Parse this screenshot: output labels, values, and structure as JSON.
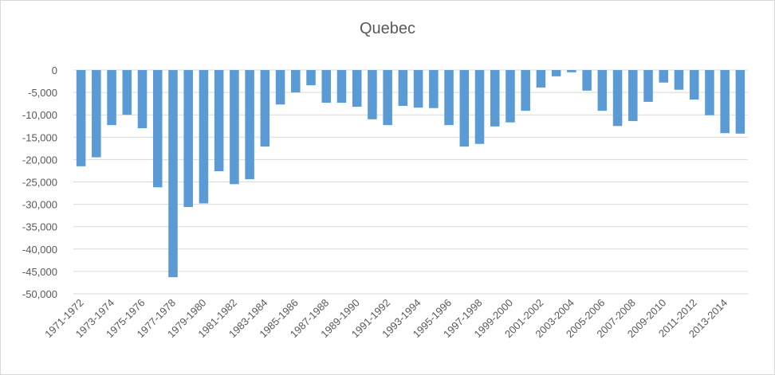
{
  "chart_data": {
    "type": "bar",
    "title": "Quebec",
    "categories": [
      "1971-1972",
      null,
      "1973-1974",
      null,
      "1975-1976",
      null,
      "1977-1978",
      null,
      "1979-1980",
      null,
      "1981-1982",
      null,
      "1983-1984",
      null,
      "1985-1986",
      null,
      "1987-1988",
      null,
      "1989-1990",
      null,
      "1991-1992",
      null,
      "1993-1994",
      null,
      "1995-1996",
      null,
      "1997-1998",
      null,
      "1999-2000",
      null,
      "2001-2002",
      null,
      "2003-2004",
      null,
      "2005-2006",
      null,
      "2007-2008",
      null,
      "2009-2010",
      null,
      "2011-2012",
      null,
      "2013-2014",
      null
    ],
    "values": [
      -21500,
      -19500,
      -12300,
      -10000,
      -13000,
      -26200,
      -46300,
      -30600,
      -29800,
      -22600,
      -25500,
      -24400,
      -17100,
      -7700,
      -5000,
      -3400,
      -7300,
      -7300,
      -8200,
      -11000,
      -12300,
      -8000,
      -8400,
      -8500,
      -12300,
      -17100,
      -16500,
      -12600,
      -11700,
      -9100,
      -3900,
      -1400,
      -500,
      -4600,
      -9100,
      -12500,
      -11400,
      -7100,
      -2800,
      -4400,
      -6600,
      -10100,
      -14100,
      -14200
    ],
    "color": "#5b9bd5",
    "ylim": [
      -50000,
      0
    ],
    "yticks": [
      {
        "value": -50000,
        "label": "-50,000"
      },
      {
        "value": -45000,
        "label": "-45,000"
      },
      {
        "value": -40000,
        "label": "-40,000"
      },
      {
        "value": -35000,
        "label": "-35,000"
      },
      {
        "value": -30000,
        "label": "-30,000"
      },
      {
        "value": -25000,
        "label": "-25,000"
      },
      {
        "value": -20000,
        "label": "-20,000"
      },
      {
        "value": -15000,
        "label": "-15,000"
      },
      {
        "value": -10000,
        "label": "-10,000"
      },
      {
        "value": -5000,
        "label": "-5,000"
      },
      0
    ],
    "grid": true
  }
}
